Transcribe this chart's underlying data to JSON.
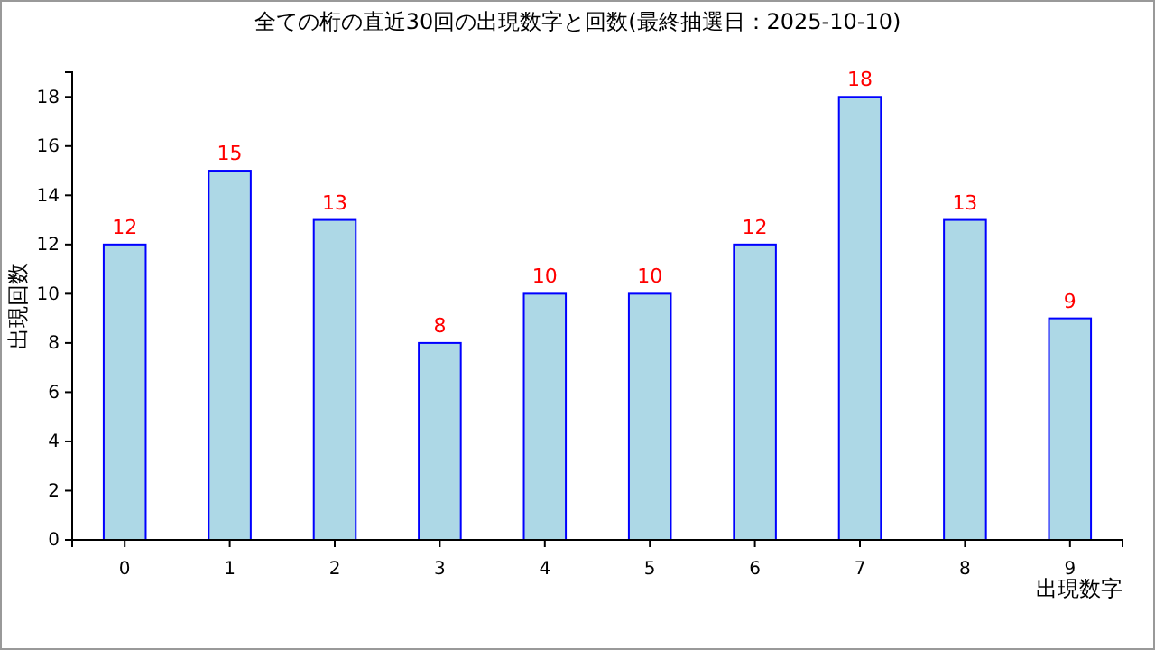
{
  "chart_data": {
    "type": "bar",
    "title": "全ての桁の直近30回の出現数字と回数(最終抽選日：2025-10-10)",
    "xlabel": "出現数字",
    "ylabel": "出現回数",
    "categories": [
      "0",
      "1",
      "2",
      "3",
      "4",
      "5",
      "6",
      "7",
      "8",
      "9"
    ],
    "values": [
      12,
      15,
      13,
      8,
      10,
      10,
      12,
      18,
      13,
      9
    ],
    "color": "#add8e6",
    "data_labels": true,
    "ylim": [
      0,
      19
    ],
    "yticks": [
      0,
      2,
      4,
      6,
      8,
      10,
      12,
      14,
      16,
      18
    ],
    "grid": false
  }
}
